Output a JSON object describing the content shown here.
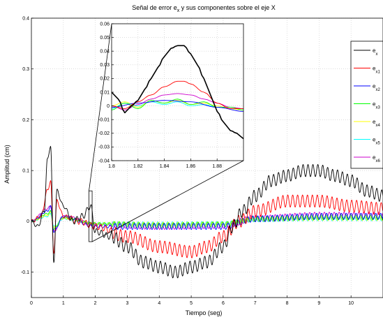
{
  "chart_data": [
    {
      "id": "main",
      "type": "line",
      "title": "Señal de error e_x y sus componentes sobre el eje X",
      "title_parts": {
        "before": "Señal de error e",
        "sub": "x",
        "after": " y sus componentes sobre el eje X"
      },
      "xlabel": "Tiempo (seg)",
      "ylabel": "Amplitud (cm)",
      "xlim": [
        0,
        11
      ],
      "ylim": [
        -0.15,
        0.4
      ],
      "xticks": [
        0,
        1,
        2,
        3,
        4,
        5,
        6,
        7,
        8,
        9,
        10
      ],
      "yticks": [
        -0.1,
        0,
        0.1,
        0.2,
        0.3,
        0.4
      ],
      "ytick_labels": [
        "-0.1",
        "0",
        "0.1",
        "0.2",
        "0.3",
        "0.4"
      ],
      "grid": true,
      "legend_position": "right",
      "legend": [
        {
          "base": "e",
          "sub": "x",
          "color": "#000000"
        },
        {
          "base": "e",
          "sub": "x1",
          "color": "#ff0000"
        },
        {
          "base": "e",
          "sub": "x2",
          "color": "#0000ff"
        },
        {
          "base": "e",
          "sub": "x3",
          "color": "#00ff00"
        },
        {
          "base": "e",
          "sub": "x4",
          "color": "#ffff00"
        },
        {
          "base": "e",
          "sub": "x5",
          "color": "#00ffff"
        },
        {
          "base": "e",
          "sub": "x6",
          "color": "#cc00cc"
        }
      ],
      "series": [
        {
          "name": "e_x",
          "color": "#000000",
          "x": [
            0,
            0.2,
            0.4,
            0.5,
            0.6,
            0.7,
            0.8,
            1.0,
            1.3,
            1.6,
            1.85,
            2.0,
            2.5,
            3.0,
            3.5,
            4.0,
            4.5,
            5.0,
            5.5,
            6.0,
            6.3,
            6.6,
            7.0,
            7.5,
            8.0,
            8.5,
            9.0,
            9.5,
            10.0,
            10.5,
            11.0
          ],
          "y": [
            0,
            -0.01,
            0.02,
            0.12,
            0.15,
            -0.08,
            0.06,
            0.03,
            0.0,
            0.01,
            0.03,
            -0.02,
            -0.03,
            -0.05,
            -0.08,
            -0.09,
            -0.1,
            -0.09,
            -0.08,
            -0.05,
            -0.01,
            0.02,
            0.05,
            0.08,
            0.09,
            0.1,
            0.1,
            0.09,
            0.08,
            0.06,
            0.05
          ]
        },
        {
          "name": "e_x1",
          "color": "#ff0000",
          "x": [
            0,
            0.3,
            0.5,
            0.6,
            0.7,
            0.8,
            1.0,
            1.5,
            2.0,
            3.0,
            4.0,
            5.0,
            5.5,
            6.0,
            6.5,
            7.0,
            8.0,
            9.0,
            10.0,
            11.0
          ],
          "y": [
            0,
            0.01,
            0.06,
            0.08,
            -0.06,
            0.04,
            0.01,
            0.0,
            -0.01,
            -0.03,
            -0.05,
            -0.06,
            -0.05,
            -0.03,
            0.0,
            0.02,
            0.04,
            0.04,
            0.03,
            0.025
          ]
        },
        {
          "name": "e_x2",
          "color": "#0000ff",
          "x": [
            0,
            0.5,
            0.6,
            0.7,
            1.0,
            2.0,
            4.0,
            6.0,
            7.0,
            9.0,
            11.0
          ],
          "y": [
            0,
            0.02,
            0.03,
            -0.02,
            0.01,
            -0.01,
            -0.01,
            -0.01,
            0.005,
            0.01,
            0.01
          ]
        },
        {
          "name": "e_x3",
          "color": "#00ff00",
          "x": [
            0,
            0.5,
            0.6,
            0.7,
            1.0,
            2.0,
            4.0,
            6.0,
            7.0,
            9.0,
            11.0
          ],
          "y": [
            0,
            0.015,
            0.02,
            -0.015,
            0.008,
            -0.005,
            -0.008,
            -0.006,
            0.005,
            0.008,
            0.008
          ]
        },
        {
          "name": "e_x4",
          "color": "#ffff00",
          "x": [
            0,
            0.5,
            0.6,
            0.7,
            1.0,
            2.0,
            4.0,
            6.0,
            7.0,
            9.0,
            11.0
          ],
          "y": [
            0,
            0.012,
            0.018,
            -0.012,
            0.006,
            -0.004,
            -0.006,
            -0.005,
            0.004,
            0.006,
            0.006
          ]
        },
        {
          "name": "e_x5",
          "color": "#00ffff",
          "x": [
            0,
            0.5,
            0.6,
            0.7,
            1.0,
            2.0,
            4.0,
            6.0,
            7.0,
            9.0,
            11.0
          ],
          "y": [
            0,
            0.01,
            0.015,
            -0.01,
            0.005,
            -0.004,
            -0.005,
            -0.004,
            0.003,
            0.005,
            0.005
          ]
        },
        {
          "name": "e_x6",
          "color": "#cc00cc",
          "x": [
            0,
            0.5,
            0.6,
            0.7,
            1.0,
            2.0,
            4.0,
            6.0,
            7.0,
            9.0,
            11.0
          ],
          "y": [
            0,
            0.025,
            0.03,
            -0.02,
            0.01,
            -0.006,
            -0.01,
            -0.008,
            0.006,
            0.012,
            0.012
          ]
        }
      ]
    },
    {
      "id": "inset",
      "type": "line",
      "xlim": [
        1.8,
        1.9
      ],
      "ylim": [
        -0.04,
        0.06
      ],
      "xticks": [
        1.8,
        1.82,
        1.84,
        1.86,
        1.88
      ],
      "xtick_labels": [
        "1.8",
        "1.82",
        "1.84",
        "1.86",
        "1.88"
      ],
      "yticks": [
        -0.04,
        -0.03,
        -0.02,
        -0.01,
        0,
        0.01,
        0.02,
        0.03,
        0.04,
        0.05,
        0.06
      ],
      "ytick_labels": [
        "-0.04",
        "-0.03",
        "-0.02",
        "-0.01",
        "0",
        "0.01",
        "0.02",
        "0.03",
        "0.04",
        "0.05",
        "0.06"
      ],
      "grid": true,
      "zoom_region": {
        "x": [
          1.8,
          1.9
        ],
        "y": [
          -0.04,
          0.06
        ]
      },
      "series": [
        {
          "name": "e_x",
          "color": "#000000",
          "x": [
            1.8,
            1.805,
            1.81,
            1.815,
            1.82,
            1.825,
            1.83,
            1.835,
            1.84,
            1.845,
            1.85,
            1.855,
            1.86,
            1.865,
            1.87,
            1.875,
            1.88,
            1.885,
            1.89,
            1.895,
            1.9
          ],
          "y": [
            0.01,
            0.005,
            -0.005,
            0.0,
            0.004,
            0.012,
            0.02,
            0.028,
            0.036,
            0.042,
            0.044,
            0.044,
            0.038,
            0.03,
            0.02,
            0.008,
            -0.004,
            -0.012,
            -0.018,
            -0.02,
            -0.024
          ]
        },
        {
          "name": "e_x1",
          "color": "#ff0000",
          "x": [
            1.8,
            1.81,
            1.82,
            1.83,
            1.84,
            1.85,
            1.855,
            1.86,
            1.87,
            1.88,
            1.89,
            1.9
          ],
          "y": [
            0.0,
            -0.002,
            0.003,
            0.008,
            0.014,
            0.018,
            0.018,
            0.016,
            0.01,
            0.002,
            -0.002,
            -0.002
          ]
        },
        {
          "name": "e_x2",
          "color": "#0000ff",
          "x": [
            1.8,
            1.82,
            1.84,
            1.86,
            1.88,
            1.9
          ],
          "y": [
            -0.001,
            0.002,
            0.004,
            0.003,
            -0.001,
            -0.004
          ]
        },
        {
          "name": "e_x3",
          "color": "#00ff00",
          "x": [
            1.8,
            1.81,
            1.82,
            1.83,
            1.84,
            1.85,
            1.86,
            1.87,
            1.88,
            1.89,
            1.9
          ],
          "y": [
            -0.003,
            0.002,
            -0.002,
            0.004,
            0.002,
            0.005,
            0.001,
            0.003,
            -0.001,
            -0.001,
            -0.003
          ]
        },
        {
          "name": "e_x4",
          "color": "#ffff00",
          "x": [
            1.8,
            1.81,
            1.82,
            1.83,
            1.84,
            1.85,
            1.86,
            1.87,
            1.88,
            1.89,
            1.9
          ],
          "y": [
            0.0,
            0.003,
            -0.001,
            0.004,
            0.002,
            0.004,
            0.001,
            0.002,
            0.0,
            -0.002,
            -0.003
          ]
        },
        {
          "name": "e_x5",
          "color": "#00ffff",
          "x": [
            1.8,
            1.81,
            1.82,
            1.83,
            1.84,
            1.85,
            1.86,
            1.87,
            1.88,
            1.89,
            1.9
          ],
          "y": [
            -0.002,
            0.002,
            0.0,
            0.003,
            0.001,
            0.003,
            0.0,
            0.001,
            -0.001,
            -0.002,
            -0.003
          ]
        },
        {
          "name": "e_x6",
          "color": "#cc00cc",
          "x": [
            1.8,
            1.81,
            1.82,
            1.83,
            1.84,
            1.85,
            1.86,
            1.87,
            1.88,
            1.89,
            1.9
          ],
          "y": [
            0.0,
            -0.003,
            0.001,
            0.005,
            0.008,
            0.009,
            0.008,
            0.005,
            0.002,
            -0.001,
            -0.002
          ]
        }
      ]
    }
  ]
}
